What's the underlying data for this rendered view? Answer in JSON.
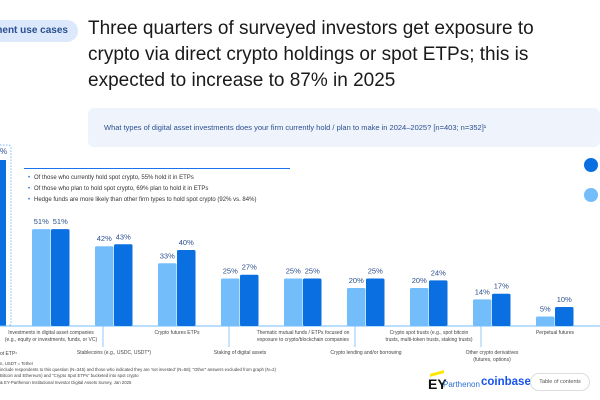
{
  "section_pill": "ment use cases",
  "title_lines": [
    "Three quarters of surveyed investors get exposure to",
    "crypto via direct crypto holdings or spot ETPs; this is",
    "expected to increase to 87% in 2025"
  ],
  "question": "What types of digital asset investments does your firm currently hold / plan to make in 2024–2025? [n=403; n=352]¹",
  "notes": [
    "Of those who currently hold spot crypto, 55% hold it in ETPs",
    "Of those who plan to hold spot crypto, 69% plan to hold it in ETPs",
    "Hedge funds are more likely than other firm types to hold spot crypto (92% vs. 84%)"
  ],
  "footnotes": [
    "n, USDT = Tether",
    "include respondents to this question (N=345) and those who indicated they are 'not invested' (N=58); \"Other\" answers excluded from graph (N=2)",
    "Bitcoin and Ethereum) and \"Crypto Spot ETPs\" bucketed into spot crypto",
    "& EY-Parthenon Institutional Investor Digital Assets Survey, Jan 2025"
  ],
  "logos": {
    "ey": "EY",
    "parthenon": "Parthenon",
    "coinbase": "coinbase"
  },
  "toc_button": "Table of contents",
  "colors": {
    "current": "#74bdfb",
    "plan": "#0a6fe0",
    "label": "#2b4f8f",
    "accent": "#1a73e8"
  },
  "chart_data": {
    "type": "bar",
    "ylim": [
      0,
      100
    ],
    "partial_first_label": "%",
    "partial_first_category": "ot ETP¹",
    "categories": [
      "Investments in digital asset companies (e.g., equity or investments, funds, or VC)",
      "Stablecoins (e.g., USDC, USDT*)",
      "Crypto futures ETPs",
      "Staking of digital assets",
      "Thematic mutual funds / ETPs focused on exposure to crypto/blockchain companies",
      "Crypto lending and/or borrowing",
      "Crypto spot trusts (e.g., spot bitcoin trusts, multi-token trusts, staking trusts)",
      "Other crypto derivatives (futures, options)",
      "Perpetual futures"
    ],
    "category_lines": [
      [
        "Investments in digital asset companies",
        "(e.g., equity or investments, funds, or VC)"
      ],
      [
        "Stablecoins (e.g., USDC, USDT*)"
      ],
      [
        "Crypto futures ETPs"
      ],
      [
        "Staking of digital assets"
      ],
      [
        "Thematic mutual funds / ETPs focused on",
        "exposure to crypto/blockchain companies"
      ],
      [
        "Crypto lending and/or borrowing"
      ],
      [
        "Crypto spot trusts (e.g., spot bitcoin",
        "trusts, multi-token trusts, staking trusts)"
      ],
      [
        "Other crypto derivatives",
        "(futures, options)"
      ],
      [
        "Perpetual futures"
      ]
    ],
    "series": [
      {
        "values": [
          51,
          42,
          33,
          25,
          25,
          20,
          20,
          14,
          5
        ]
      },
      {
        "values": [
          51,
          43,
          40,
          27,
          25,
          25,
          24,
          17,
          10
        ]
      }
    ]
  }
}
